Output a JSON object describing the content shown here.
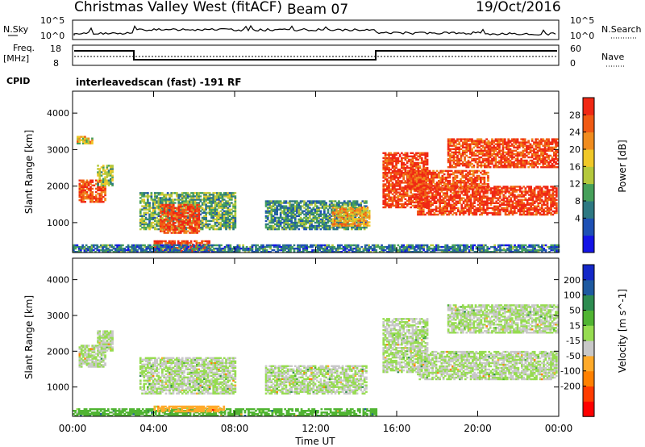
{
  "header": {
    "title": "Christmas Valley West (fitACF)",
    "beam": "Beam 07",
    "date": "19/Oct/2016"
  },
  "status_panels": {
    "nsky_label": "N.Sky",
    "nsky_ticks": [
      "10^5",
      "10^0"
    ],
    "nsearch_label": "N.Search",
    "nsearch_ticks": [
      "10^5",
      "10^0"
    ],
    "freq_label_line1": "Freq.",
    "freq_label_line2": "[MHz]",
    "freq_ticks": [
      "18",
      "8"
    ],
    "nave_label": "Nave",
    "nave_ticks": [
      "60",
      "0"
    ],
    "cpid_label": "CPID",
    "cpid_value": "interleavedscan (fast) -191 RF"
  },
  "colors": {
    "power_scale": [
      "#1414e6",
      "#1e50b4",
      "#2d7882",
      "#46a05a",
      "#b4c83c",
      "#f0c828",
      "#f08c1e",
      "#f05a14",
      "#f02814"
    ],
    "velocity_scale": [
      "#ff0000",
      "#ff3c00",
      "#ff8000",
      "#ffaa2a",
      "#c8c8c8",
      "#96dc50",
      "#50b432",
      "#2d8c50",
      "#1e5aa0",
      "#1428c8"
    ]
  },
  "chart_data": [
    {
      "type": "heatmap",
      "name": "power",
      "ylabel": "Slant Range [km]",
      "xlabel": "",
      "y_ticks": [
        "4000",
        "3000",
        "2000",
        "1000"
      ],
      "x_ticks": [
        "00:00",
        "04:00",
        "08:00",
        "12:00",
        "16:00",
        "20:00",
        "00:00"
      ],
      "ylim": [
        180,
        4600
      ],
      "xlim_hours": [
        0,
        24
      ],
      "colorbar_label": "Power [dB]",
      "colorbar_ticks": [
        "28",
        "24",
        "20",
        "16",
        "12",
        "8",
        "4"
      ],
      "clim": [
        0,
        30
      ],
      "regions": [
        {
          "t0": 0.3,
          "t1": 1.6,
          "r0": 1550,
          "r1": 2150,
          "value": 26
        },
        {
          "t0": 1.2,
          "t1": 2.0,
          "r0": 2000,
          "r1": 2550,
          "value": 14
        },
        {
          "t0": 0.2,
          "t1": 1.0,
          "r0": 3150,
          "r1": 3350,
          "value": 18
        },
        {
          "t0": 3.3,
          "t1": 8.0,
          "r0": 800,
          "r1": 1800,
          "value": 12
        },
        {
          "t0": 4.3,
          "t1": 6.2,
          "r0": 700,
          "r1": 1500,
          "value": 27
        },
        {
          "t0": 4.0,
          "t1": 6.7,
          "r0": 200,
          "r1": 500,
          "value": 28
        },
        {
          "t0": 9.5,
          "t1": 14.5,
          "r0": 800,
          "r1": 1600,
          "value": 10
        },
        {
          "t0": 12.8,
          "t1": 14.6,
          "r0": 900,
          "r1": 1400,
          "value": 20
        },
        {
          "t0": 15.3,
          "t1": 17.5,
          "r0": 1400,
          "r1": 2900,
          "value": 28
        },
        {
          "t0": 17.0,
          "t1": 23.9,
          "r0": 1200,
          "r1": 2000,
          "value": 28
        },
        {
          "t0": 16.5,
          "t1": 20.5,
          "r0": 1900,
          "r1": 2400,
          "value": 26
        },
        {
          "t0": 18.5,
          "t1": 23.9,
          "r0": 2500,
          "r1": 3300,
          "value": 27
        },
        {
          "t0": 0,
          "t1": 24,
          "r0": 180,
          "r1": 380,
          "value": 8
        }
      ]
    },
    {
      "type": "heatmap",
      "name": "velocity",
      "ylabel": "Slant Range [km]",
      "xlabel": "Time UT",
      "y_ticks": [
        "4000",
        "3000",
        "2000",
        "1000"
      ],
      "x_ticks": [
        "00:00",
        "04:00",
        "08:00",
        "12:00",
        "16:00",
        "20:00",
        "00:00"
      ],
      "ylim": [
        180,
        4600
      ],
      "xlim_hours": [
        0,
        24
      ],
      "colorbar_label": "Velocity [m s^-1]",
      "colorbar_ticks": [
        "200",
        "100",
        "50",
        "15",
        "-15",
        "-50",
        "-100",
        "-200"
      ],
      "clim": [
        -250,
        250
      ],
      "regions": [
        {
          "t0": 0.3,
          "t1": 1.6,
          "r0": 1550,
          "r1": 2150,
          "value": 0
        },
        {
          "t0": 1.2,
          "t1": 2.0,
          "r0": 2000,
          "r1": 2550,
          "value": 0
        },
        {
          "t0": 3.3,
          "t1": 8.0,
          "r0": 800,
          "r1": 1800,
          "value": 0
        },
        {
          "t0": 9.5,
          "t1": 14.5,
          "r0": 800,
          "r1": 1600,
          "value": 0
        },
        {
          "t0": 15.3,
          "t1": 17.5,
          "r0": 1400,
          "r1": 2900,
          "value": 0
        },
        {
          "t0": 17.0,
          "t1": 23.9,
          "r0": 1200,
          "r1": 2000,
          "value": 0
        },
        {
          "t0": 18.5,
          "t1": 23.9,
          "r0": 2500,
          "r1": 3300,
          "value": 0
        },
        {
          "t0": 0,
          "t1": 15,
          "r0": 180,
          "r1": 380,
          "value": 60
        },
        {
          "t0": 4.0,
          "t1": 7.5,
          "r0": 300,
          "r1": 450,
          "value": -60
        }
      ]
    }
  ]
}
